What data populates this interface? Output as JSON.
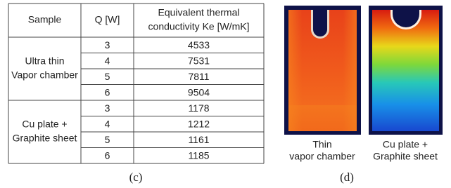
{
  "table": {
    "header": [
      "Sample",
      "Q [W]",
      [
        "Equivalent thermal",
        "conductivity Ke [W/mK]"
      ]
    ],
    "groups": [
      {
        "sample": [
          "Ultra thin",
          "Vapor chamber"
        ],
        "rows": [
          [
            "3",
            "4533"
          ],
          [
            "4",
            "7531"
          ],
          [
            "5",
            "7811"
          ],
          [
            "6",
            "9504"
          ]
        ]
      },
      {
        "sample": [
          "Cu plate +",
          "Graphite sheet"
        ],
        "rows": [
          [
            "3",
            "1178"
          ],
          [
            "4",
            "1212"
          ],
          [
            "5",
            "1161"
          ],
          [
            "6",
            "1185"
          ]
        ]
      }
    ]
  },
  "table_caption": "(c)",
  "images": {
    "captions": [
      [
        "Thin",
        "vapor chamber"
      ],
      [
        "Cu plate +",
        "Graphite sheet"
      ]
    ]
  },
  "images_caption": "(d)"
}
